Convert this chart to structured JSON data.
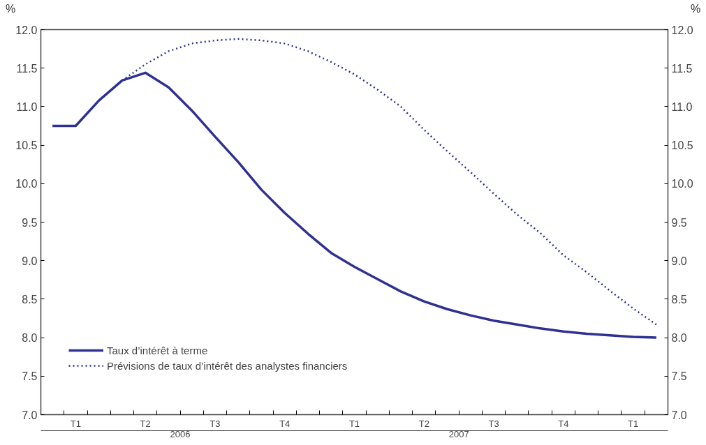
{
  "chart_data": {
    "type": "line",
    "ylabel": "%",
    "y2label": "%",
    "categories": [
      null,
      "T1",
      null,
      null,
      "T2",
      null,
      null,
      "T3",
      null,
      null,
      "T4",
      null,
      null,
      "T1",
      null,
      null,
      "T2",
      null,
      null,
      "T3",
      null,
      null,
      "T4",
      null,
      null,
      "T1",
      null
    ],
    "series": [
      {
        "name": "Taux d’intérêt à terme",
        "color": "#2e3192",
        "line_style": "solid",
        "values": [
          10.75,
          10.75,
          11.08,
          11.34,
          11.44,
          11.25,
          10.95,
          10.61,
          10.28,
          9.92,
          9.62,
          9.35,
          9.1,
          8.92,
          8.76,
          8.6,
          8.47,
          8.37,
          8.29,
          8.22,
          8.17,
          8.12,
          8.08,
          8.05,
          8.03,
          8.01,
          8.0
        ]
      },
      {
        "name": "Prévisions de taux d’intérêt des analystes financiers",
        "color": "#2e3192",
        "line_style": "dotted",
        "values": [
          null,
          null,
          null,
          11.34,
          11.55,
          11.72,
          11.82,
          11.86,
          11.88,
          11.86,
          11.82,
          11.72,
          11.58,
          11.42,
          11.22,
          11.0,
          10.7,
          10.42,
          10.15,
          9.87,
          9.6,
          9.36,
          9.07,
          8.85,
          8.61,
          8.38,
          8.17
        ]
      }
    ],
    "ylim": [
      7.0,
      12.0
    ],
    "yticks": [
      {
        "value": 7.0,
        "label": "7.0"
      },
      {
        "value": 7.5,
        "label": "7.5"
      },
      {
        "value": 8.0,
        "label": "8.0"
      },
      {
        "value": 8.5,
        "label": "8.5"
      },
      {
        "value": 9.0,
        "label": "9.0"
      },
      {
        "value": 9.5,
        "label": "9.5"
      },
      {
        "value": 10.0,
        "label": "10.0"
      },
      {
        "value": 10.5,
        "label": "10.5"
      },
      {
        "value": 11.0,
        "label": "11.0"
      },
      {
        "value": 11.5,
        "label": "11.5"
      },
      {
        "value": 12.0,
        "label": "12.0"
      }
    ],
    "y2lim": [
      7.0,
      12.0
    ],
    "y2ticks": [
      {
        "value": 7.0,
        "label": "7.0"
      },
      {
        "value": 7.5,
        "label": "7.5"
      },
      {
        "value": 8.0,
        "label": "8.0"
      },
      {
        "value": 8.5,
        "label": "8.5"
      },
      {
        "value": 9.0,
        "label": "9.0"
      },
      {
        "value": 9.5,
        "label": "9.5"
      },
      {
        "value": 10.0,
        "label": "10.0"
      },
      {
        "value": 10.5,
        "label": "10.5"
      },
      {
        "value": 11.0,
        "label": "11.0"
      },
      {
        "value": 11.5,
        "label": "11.5"
      },
      {
        "value": 12.0,
        "label": "12.0"
      }
    ],
    "annotations": [
      "2006",
      "2007"
    ],
    "legend": "bottom left",
    "grid": false,
    "marker": "none"
  }
}
